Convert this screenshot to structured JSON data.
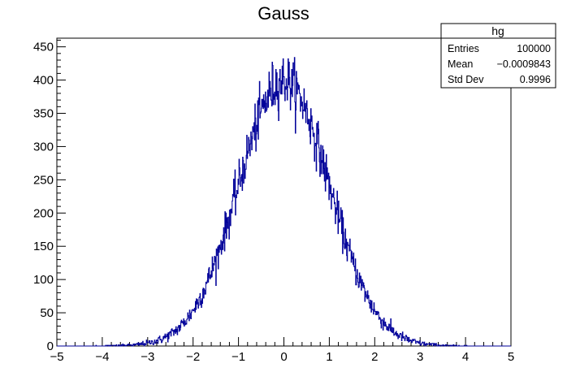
{
  "chart_data": {
    "type": "histogram",
    "title": "Gauss",
    "xlabel": "",
    "ylabel": "",
    "xlim": [
      -5,
      5
    ],
    "ylim": [
      0,
      463
    ],
    "grid": false,
    "x_ticks": [
      "−5",
      "−4",
      "−3",
      "−2",
      "−1",
      "0",
      "1",
      "2",
      "3",
      "4",
      "5"
    ],
    "y_ticks": [
      "0",
      "50",
      "100",
      "150",
      "200",
      "250",
      "300",
      "350",
      "400",
      "450"
    ],
    "x_tick_values": [
      -5,
      -4,
      -3,
      -2,
      -1,
      0,
      1,
      2,
      3,
      4,
      5
    ],
    "y_tick_values": [
      0,
      50,
      100,
      150,
      200,
      250,
      300,
      350,
      400,
      450
    ],
    "series": [
      {
        "name": "hg",
        "color": "#000099",
        "bins": 1000,
        "bin_range": [
          -5,
          5
        ],
        "distribution": "gaussian",
        "peak_counts": 440
      }
    ],
    "stats_box": {
      "title": "hg",
      "rows": [
        {
          "label": "Entries",
          "value": "100000"
        },
        {
          "label": "Mean",
          "value": "−0.0009843"
        },
        {
          "label": "Std Dev",
          "value": "0.9996"
        }
      ]
    }
  }
}
